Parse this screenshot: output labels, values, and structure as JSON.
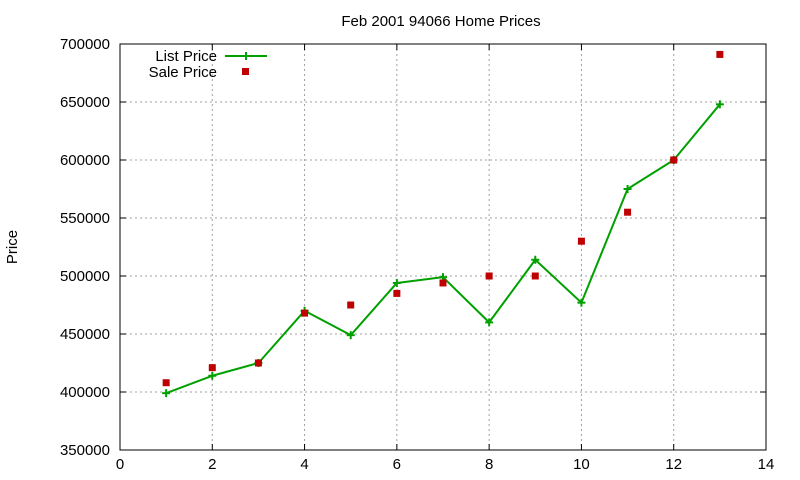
{
  "chart_data": {
    "type": "line",
    "title": "Feb 2001 94066 Home Prices",
    "xlabel": "",
    "ylabel": "Price",
    "xlim": [
      0,
      14
    ],
    "ylim": [
      350000,
      700000
    ],
    "x_ticks": [
      "0",
      "2",
      "4",
      "6",
      "8",
      "10",
      "12",
      "14"
    ],
    "y_ticks": [
      "350000",
      "400000",
      "450000",
      "500000",
      "550000",
      "600000",
      "650000",
      "700000"
    ],
    "grid": true,
    "legend_position": "top-left",
    "x": [
      1,
      2,
      3,
      4,
      5,
      6,
      7,
      8,
      9,
      10,
      11,
      12,
      13
    ],
    "series": [
      {
        "name": "List Price",
        "kind": "line+cross",
        "color": "#00a000",
        "values": [
          399000,
          414000,
          425000,
          470000,
          449000,
          494000,
          499000,
          460000,
          514000,
          477000,
          575000,
          600000,
          648000
        ]
      },
      {
        "name": "Sale Price",
        "kind": "square-points",
        "color": "#c00000",
        "values": [
          408000,
          421000,
          425000,
          468000,
          475000,
          485000,
          494000,
          500000,
          500000,
          530000,
          555000,
          600000,
          691000
        ]
      }
    ]
  }
}
